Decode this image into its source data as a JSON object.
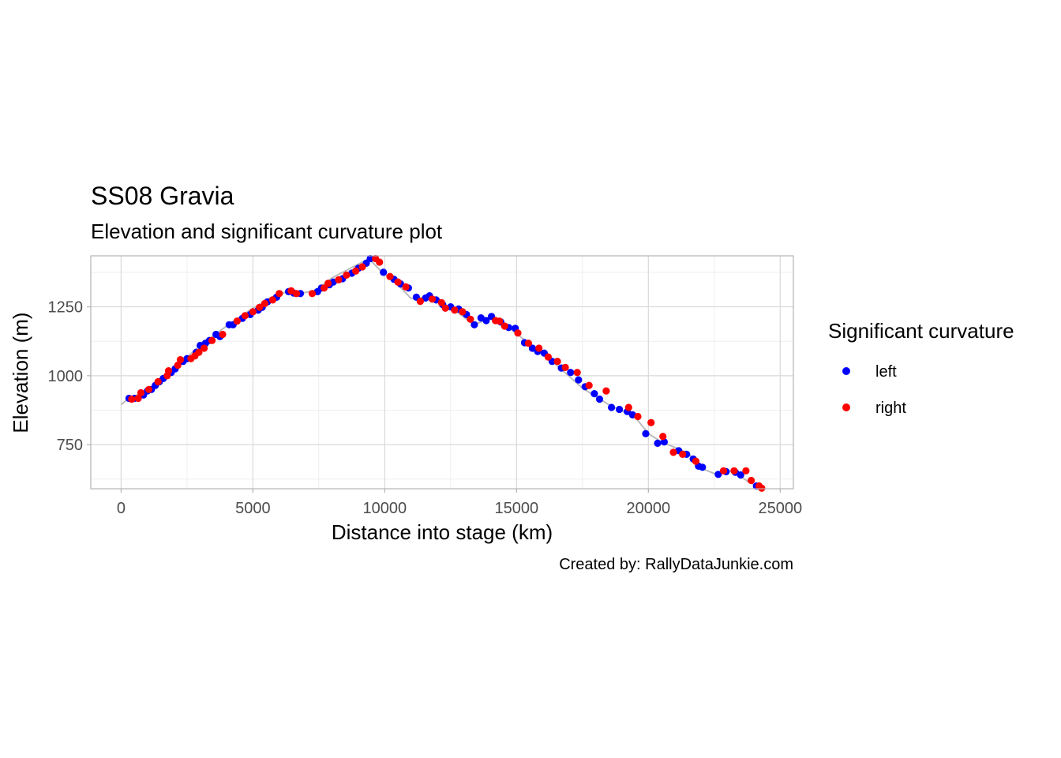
{
  "chart_data": {
    "type": "scatter",
    "title": "SS08 Gravia",
    "subtitle": "Elevation and significant curvature plot",
    "xlabel": "Distance into stage (km)",
    "ylabel": "Elevation (m)",
    "caption": "Created by: RallyDataJunkie.com",
    "xlim": [
      -1150,
      25500
    ],
    "ylim": [
      590,
      1435
    ],
    "x_ticks": [
      0,
      5000,
      10000,
      15000,
      20000,
      25000
    ],
    "x_tick_labels": [
      "0",
      "5000",
      "10000",
      "15000",
      "20000",
      "25000"
    ],
    "y_ticks": [
      750,
      1000,
      1250
    ],
    "y_tick_labels": [
      "750",
      "1000",
      "1250"
    ],
    "grid": true,
    "legend": {
      "title": "Significant curvature",
      "position": "right",
      "entries": [
        {
          "label": "left",
          "color": "#0000ff"
        },
        {
          "label": "right",
          "color": "#ff0000"
        }
      ]
    },
    "colors": {
      "left": "#0000ff",
      "right": "#ff0000",
      "elevation_line": "#bbbbbb"
    },
    "elevation_profile": {
      "x": [
        0,
        300,
        1000,
        2000,
        3000,
        4000,
        5000,
        5700,
        6300,
        6800,
        7400,
        8000,
        9000,
        9400,
        9800,
        10400,
        11000,
        11600,
        12500,
        13400,
        14000,
        14500,
        15500,
        16500,
        17500,
        18500,
        19500,
        20000,
        20500,
        21500,
        22000,
        22500,
        23200,
        23800,
        24300
      ],
      "y": [
        895,
        918,
        945,
        1025,
        1110,
        1180,
        1245,
        1285,
        1305,
        1298,
        1310,
        1355,
        1405,
        1425,
        1385,
        1340,
        1280,
        1285,
        1248,
        1185,
        1210,
        1190,
        1115,
        1040,
        955,
        895,
        850,
        790,
        760,
        720,
        665,
        645,
        655,
        615,
        590
      ]
    },
    "series": [
      {
        "name": "left",
        "x": [
          300,
          500,
          850,
          1000,
          1150,
          1300,
          1450,
          1600,
          1900,
          2050,
          2350,
          2500,
          2850,
          3000,
          3200,
          3350,
          3600,
          3750,
          4100,
          4250,
          4600,
          4900,
          5200,
          5350,
          5550,
          5900,
          6350,
          6550,
          6800,
          7450,
          7600,
          7900,
          8050,
          8400,
          8750,
          9000,
          9300,
          9450,
          9950,
          10350,
          10600,
          10900,
          11200,
          11550,
          11700,
          11950,
          12200,
          12500,
          12800,
          13100,
          13400,
          13650,
          13850,
          14050,
          14400,
          14700,
          14950,
          15300,
          15600,
          15800,
          16050,
          16350,
          16700,
          17050,
          17350,
          17600,
          17950,
          18150,
          18600,
          18900,
          19200,
          19400,
          19900,
          20350,
          20600,
          21150,
          21450,
          21700,
          21900,
          22050,
          22650,
          22950,
          23300,
          23500,
          24100
        ],
        "y": [
          918,
          918,
          930,
          945,
          950,
          965,
          978,
          990,
          1012,
          1025,
          1052,
          1062,
          1085,
          1110,
          1118,
          1128,
          1150,
          1142,
          1185,
          1185,
          1208,
          1222,
          1238,
          1248,
          1268,
          1285,
          1305,
          1300,
          1298,
          1305,
          1318,
          1330,
          1340,
          1352,
          1372,
          1390,
          1408,
          1425,
          1375,
          1350,
          1333,
          1318,
          1285,
          1282,
          1290,
          1275,
          1258,
          1250,
          1242,
          1222,
          1185,
          1210,
          1200,
          1215,
          1195,
          1175,
          1172,
          1120,
          1100,
          1088,
          1082,
          1052,
          1028,
          1012,
          985,
          960,
          935,
          915,
          885,
          878,
          870,
          858,
          790,
          755,
          760,
          728,
          715,
          698,
          672,
          668,
          642,
          652,
          650,
          640,
          600
        ]
      },
      {
        "name": "right",
        "x": [
          400,
          650,
          750,
          1050,
          1400,
          1750,
          1800,
          2150,
          2250,
          2650,
          2800,
          2950,
          3150,
          3450,
          3850,
          4400,
          4700,
          5000,
          5250,
          5450,
          5750,
          6000,
          6450,
          6650,
          7250,
          7700,
          7850,
          8250,
          8550,
          8900,
          9150,
          9650,
          9800,
          10200,
          10500,
          10800,
          11350,
          11800,
          12150,
          12300,
          12650,
          12950,
          13250,
          14200,
          14350,
          14550,
          15050,
          15450,
          15850,
          16200,
          16550,
          16850,
          17300,
          17750,
          18400,
          19250,
          19600,
          20100,
          20550,
          20950,
          21300,
          21800,
          22850,
          23250,
          23700,
          23900,
          24200,
          24300
        ],
        "y": [
          915,
          918,
          938,
          950,
          978,
          1000,
          1018,
          1038,
          1058,
          1062,
          1072,
          1085,
          1100,
          1128,
          1150,
          1198,
          1218,
          1232,
          1248,
          1262,
          1275,
          1298,
          1308,
          1298,
          1298,
          1318,
          1335,
          1348,
          1365,
          1380,
          1395,
          1425,
          1412,
          1360,
          1340,
          1322,
          1270,
          1278,
          1265,
          1245,
          1238,
          1232,
          1205,
          1200,
          1198,
          1180,
          1155,
          1118,
          1100,
          1068,
          1052,
          1030,
          1012,
          965,
          945,
          885,
          852,
          830,
          780,
          722,
          715,
          690,
          655,
          655,
          655,
          620,
          600,
          592
        ]
      }
    ]
  }
}
